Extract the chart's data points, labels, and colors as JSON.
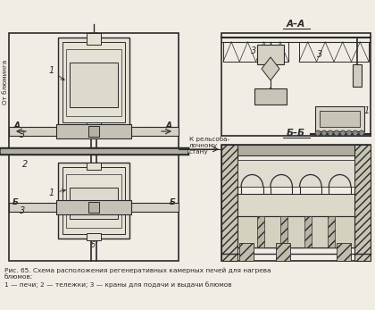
{
  "bg_color": "#f2ede4",
  "line_color": "#2a2a2a",
  "caption_line1": "Рис. 65. Схема расположения регенеративных камерных печей для нагрева",
  "caption_line2": "блюмов:",
  "caption_line3": "1 — печи; 2 — тележки; 3 — краны для подачи и выдачи блюмов",
  "label_AA": "А–А",
  "label_BB": "Б–Б",
  "label_from": "От блюминга",
  "label_to": "К рельсоба-\nлочному\nстану",
  "label_A_left": "А",
  "label_A_right": "А"
}
